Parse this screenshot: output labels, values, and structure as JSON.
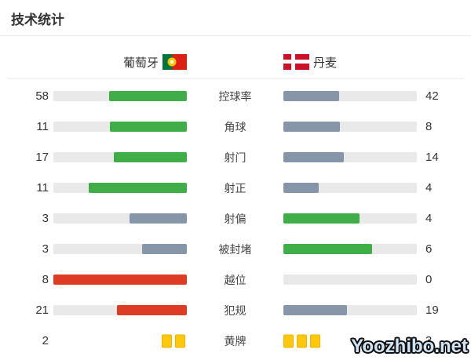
{
  "title": "技术统计",
  "watermark": "Yoozhibo.net",
  "teams": {
    "home": {
      "name": "葡萄牙",
      "flag": "portugal-flag"
    },
    "away": {
      "name": "丹麦",
      "flag": "denmark-flag"
    }
  },
  "colors": {
    "green": "#3fae49",
    "slate": "#8795a8",
    "red": "#dd3b23",
    "track": "#e9e9e9",
    "card": "#ffc80a"
  },
  "chart_data": {
    "type": "bar",
    "title": "技术统计",
    "legend": [
      "葡萄牙",
      "丹麦"
    ],
    "categories": [
      "控球率",
      "角球",
      "射门",
      "射正",
      "射偏",
      "被封堵",
      "越位",
      "犯规",
      "黄牌"
    ],
    "series": [
      {
        "name": "葡萄牙",
        "values": [
          58,
          11,
          17,
          11,
          3,
          3,
          8,
          21,
          2
        ]
      },
      {
        "name": "丹麦",
        "values": [
          42,
          8,
          14,
          4,
          4,
          6,
          0,
          19,
          3
        ]
      }
    ],
    "rows": [
      {
        "label": "控球率",
        "home": 58,
        "away": 42,
        "home_color": "green",
        "away_color": "slate",
        "style": "bar"
      },
      {
        "label": "角球",
        "home": 11,
        "away": 8,
        "home_color": "green",
        "away_color": "slate",
        "style": "bar"
      },
      {
        "label": "射门",
        "home": 17,
        "away": 14,
        "home_color": "green",
        "away_color": "slate",
        "style": "bar"
      },
      {
        "label": "射正",
        "home": 11,
        "away": 4,
        "home_color": "green",
        "away_color": "slate",
        "style": "bar"
      },
      {
        "label": "射偏",
        "home": 3,
        "away": 4,
        "home_color": "slate",
        "away_color": "green",
        "style": "bar"
      },
      {
        "label": "被封堵",
        "home": 3,
        "away": 6,
        "home_color": "slate",
        "away_color": "green",
        "style": "bar"
      },
      {
        "label": "越位",
        "home": 8,
        "away": 0,
        "home_color": "red",
        "away_color": "none",
        "style": "bar"
      },
      {
        "label": "犯规",
        "home": 21,
        "away": 19,
        "home_color": "red",
        "away_color": "slate",
        "style": "bar"
      },
      {
        "label": "黄牌",
        "home": 2,
        "away": 3,
        "home_color": "card",
        "away_color": "card",
        "style": "cards"
      }
    ]
  }
}
